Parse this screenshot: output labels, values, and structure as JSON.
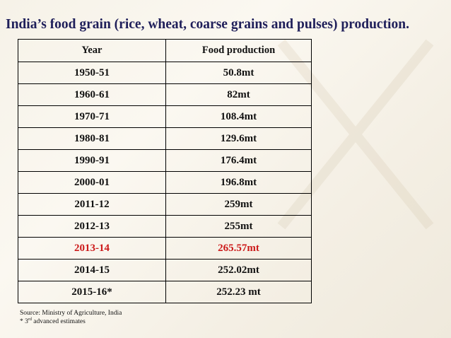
{
  "slide": {
    "title": "India’s food grain (rice, wheat, coarse grains and pulses) production."
  },
  "table": {
    "headers": {
      "year": "Year",
      "production": "Food production"
    },
    "rows": [
      {
        "year": "1950-51",
        "production": "50.8mt"
      },
      {
        "year": "1960-61",
        "production": "82mt"
      },
      {
        "year": "1970-71",
        "production": "108.4mt"
      },
      {
        "year": "1980-81",
        "production": "129.6mt"
      },
      {
        "year": "1990-91",
        "production": "176.4mt"
      },
      {
        "year": "2000-01",
        "production": "196.8mt"
      },
      {
        "year": "2011-12",
        "production": "259mt"
      },
      {
        "year": "2012-13",
        "production": "255mt"
      },
      {
        "year": "2013-14",
        "production": "265.57mt",
        "highlight": true
      },
      {
        "year": "2014-15",
        "production": "252.02mt"
      },
      {
        "year": "2015-16*",
        "production": "252.23 mt"
      }
    ],
    "highlight_color": "#cc1a1a"
  },
  "footnotes": {
    "source": "Source: Ministry of Agriculture, India",
    "estimate_prefix": "* 3",
    "estimate_sup": "rd",
    "estimate_suffix": " advanced estimates"
  }
}
